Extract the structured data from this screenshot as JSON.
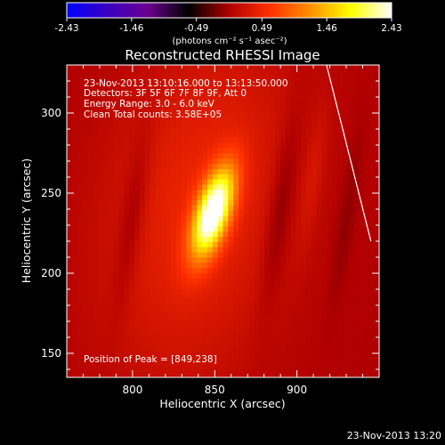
{
  "chart_data": {
    "type": "heatmap",
    "title": "Reconstructed RHESSI Image",
    "xlabel": "Heliocentric X (arcsec)",
    "ylabel": "Heliocentric Y (arcsec)",
    "xlim": [
      760,
      950
    ],
    "ylim": [
      135,
      330
    ],
    "xticks": [
      800,
      850,
      900
    ],
    "yticks": [
      150,
      200,
      250,
      300
    ],
    "info_lines": [
      "23-Nov-2013 13:10:16.000 to 13:13:50.000",
      "Detectors: 3F 5F 6F 7F 8F 9F, Att 0",
      "Energy Range: 3.0 - 6.0 keV",
      "Clean    Total counts: 3.58E+05"
    ],
    "peak_label": "Position of Peak = [849,238]",
    "peak": [
      849,
      238
    ],
    "limb_line": [
      [
        918,
        330
      ],
      [
        945,
        220
      ]
    ],
    "colorbar": {
      "ticks": [
        "-2.43",
        "-1.46",
        "-0.49",
        "0.49",
        "1.46",
        "2.43"
      ],
      "range": [
        -2.43,
        2.43
      ],
      "unit": "(photons cm⁻² s⁻¹ asec⁻²)",
      "colors": [
        "#0000ff",
        "#3a00c0",
        "#6a0090",
        "#000000",
        "#b00000",
        "#ff3000",
        "#ff9000",
        "#ffff00",
        "#ffffff"
      ]
    },
    "sources": [
      {
        "x": 849,
        "y": 238,
        "sx": 7,
        "sy": 20,
        "tilt_deg": 17,
        "amp": 2.43
      },
      {
        "x": 840,
        "y": 242,
        "sx": 40,
        "sy": 80,
        "tilt_deg": 10,
        "amp": 0.45
      },
      {
        "x": 800,
        "y": 235,
        "sx": 5,
        "sy": 38,
        "tilt_deg": 8,
        "amp": -0.28
      },
      {
        "x": 890,
        "y": 240,
        "sx": 5,
        "sy": 40,
        "tilt_deg": 8,
        "amp": -0.3
      },
      {
        "x": 910,
        "y": 260,
        "sx": 4,
        "sy": 30,
        "tilt_deg": 8,
        "amp": 0.18
      },
      {
        "x": 930,
        "y": 235,
        "sx": 4,
        "sy": 40,
        "tilt_deg": 8,
        "amp": -0.15
      }
    ]
  },
  "footer": "23-Nov-2013 13:20"
}
